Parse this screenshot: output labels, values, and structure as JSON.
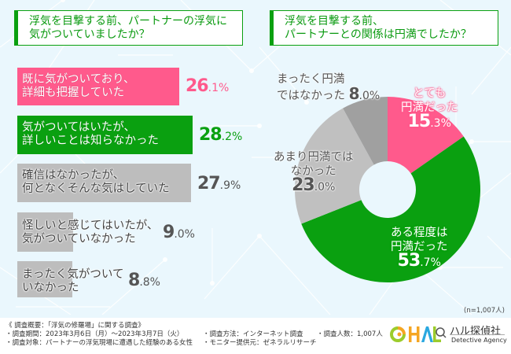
{
  "left_question": {
    "line1": "浮気を目撃する前、パートナーの浮気に",
    "line2": "気がついていましたか？"
  },
  "right_question": {
    "line1": "浮気を目撃する前、",
    "line2": "パートナーとの関係は円満でしたか？"
  },
  "chart_data": [
    {
      "type": "bar",
      "orientation": "horizontal",
      "title": "浮気を目撃する前、パートナーの浮気に気がついていましたか？",
      "categories": [
        [
          "既に気がついており、",
          "詳細も把握していた"
        ],
        [
          "気がついてはいたが、",
          "詳しいことは知らなかった"
        ],
        [
          "確信はなかったが、",
          "何となくそんな気はしていた"
        ],
        [
          "怪しいと感じてはいたが、",
          "気がついていなかった"
        ],
        [
          "まったく気がついて",
          "いなかった"
        ]
      ],
      "values": [
        26.1,
        28.2,
        27.9,
        9.0,
        8.8
      ],
      "value_labels": [
        {
          "int": "26",
          "dec": ".1%"
        },
        {
          "int": "28",
          "dec": ".2%"
        },
        {
          "int": "27",
          "dec": ".9%"
        },
        {
          "int": "9",
          "dec": ".0%"
        },
        {
          "int": "8",
          "dec": ".8%"
        }
      ],
      "colors": [
        "#ff5a8c",
        "#0aa010",
        "#bdbdbd",
        "#bdbdbd",
        "#bdbdbd"
      ],
      "label_colors": [
        "#ff5a8c",
        "#0aa010",
        "#555555",
        "#555555",
        "#555555"
      ],
      "xlim": [
        0,
        30
      ]
    },
    {
      "type": "pie",
      "donut": true,
      "title": "浮気を目撃する前、パートナーとの関係は円満でしたか？",
      "slices": [
        {
          "label": [
            "とても",
            "円満だった"
          ],
          "value": 15.3,
          "int": "15",
          "dec": ".3%",
          "color": "#ff5a8c"
        },
        {
          "label": [
            "ある程度は",
            "円満だった"
          ],
          "value": 53.7,
          "int": "53",
          "dec": ".7%",
          "color": "#0aa010"
        },
        {
          "label": [
            "あまり円満では",
            "なかった"
          ],
          "value": 23.0,
          "int": "23",
          "dec": ".0%",
          "color": "#c0c0c0"
        },
        {
          "label": [
            "まったく円満",
            "ではなかった"
          ],
          "value": 8.0,
          "int": "8",
          "dec": ".0%",
          "color": "#a0a0a0"
        }
      ],
      "start": "top",
      "direction": "clockwise",
      "note": "(n=1,007人)"
    }
  ],
  "footer": {
    "summary": "《 調査概要：「浮気の修羅場」に関する調査》",
    "period": "・調査期間：2023年3月6日（月）～2023年3月7日（火）",
    "target": "・調査対象：パートナーの浮気現場に遭遇した経験のある女性",
    "method": "・調査方法：インターネット調査",
    "provider": "・モニター提供元：ゼネラルリサーチ",
    "count": "・調査人数：1,007人"
  },
  "logo": {
    "mark": "HAL",
    "name_jp": "ハル探偵社",
    "name_en": "Detective Agency",
    "colors": {
      "c1": "#9ccc2c",
      "c2": "#f5a623",
      "h": "#f5a623",
      "a": "#2aa8e0",
      "l": "#9ccc2c"
    }
  }
}
